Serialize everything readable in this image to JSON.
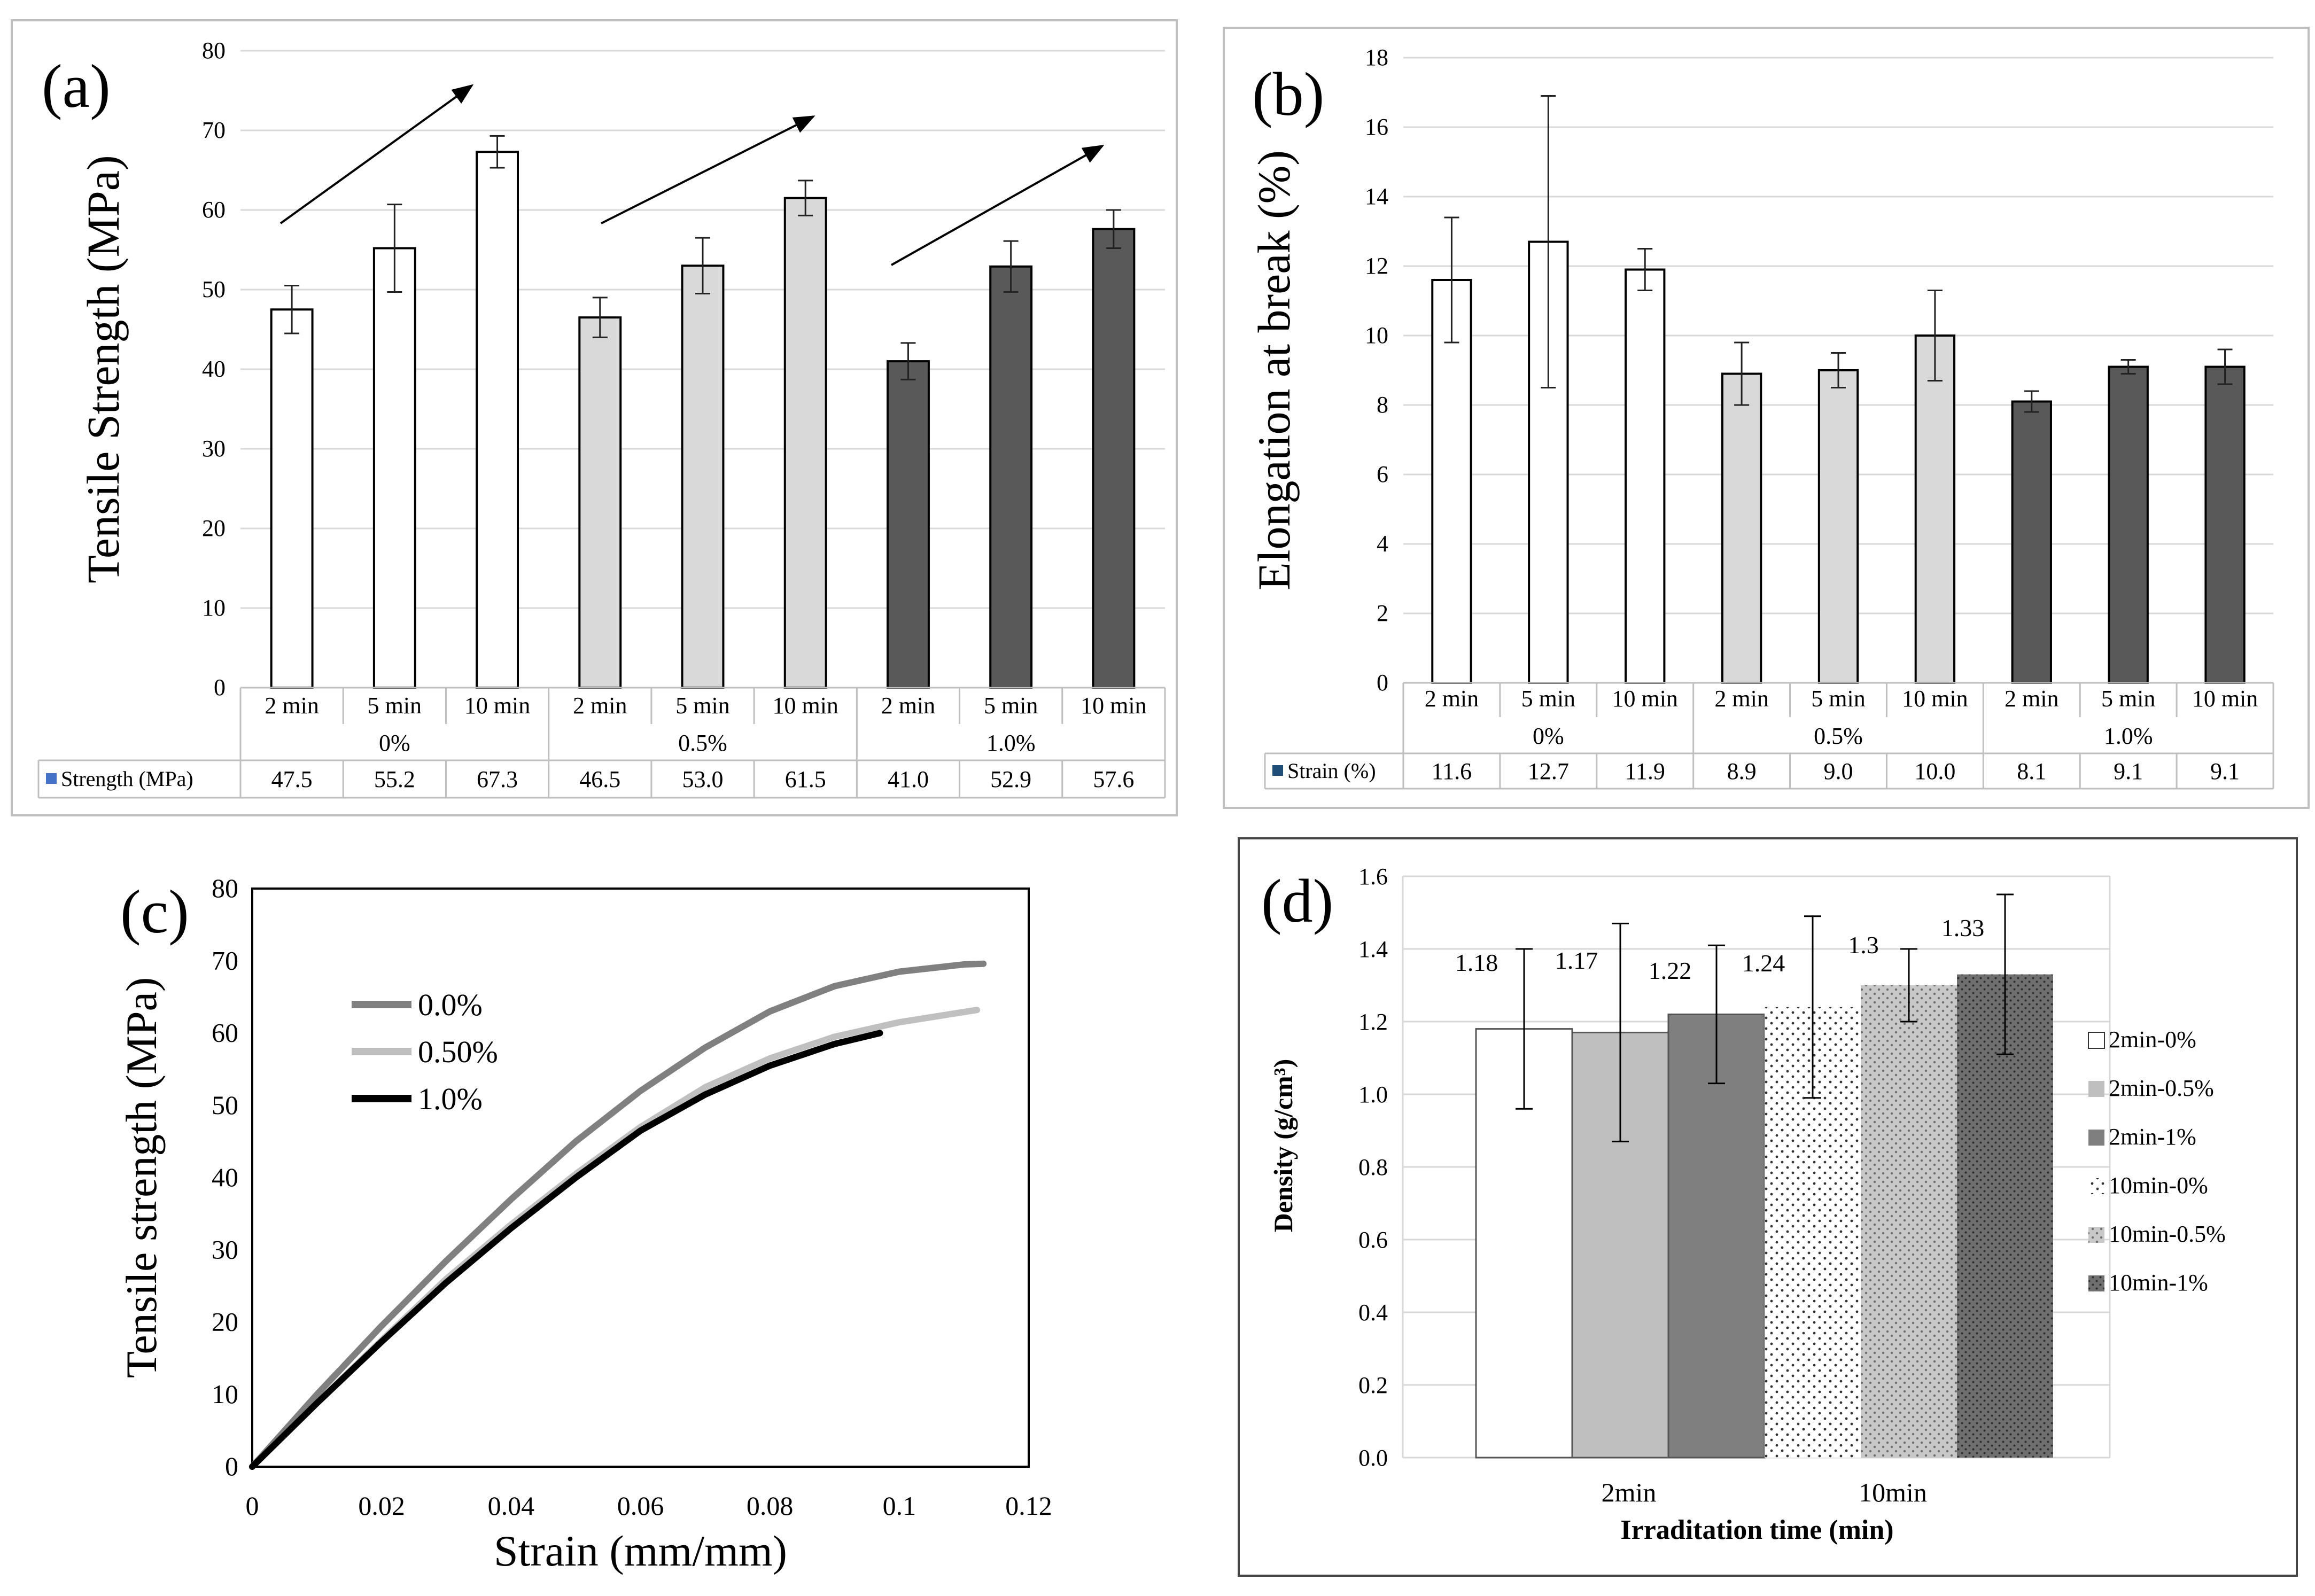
{
  "panels": {
    "a": {
      "tag": "(a)"
    },
    "b": {
      "tag": "(b)"
    },
    "c": {
      "tag": "(c)"
    },
    "d": {
      "tag": "(d)"
    }
  },
  "colors": {
    "white_bar": "#ffffff",
    "light_bar": "#d9d9d9",
    "dark_bar": "#595959",
    "legend_square_a": "#4472c4",
    "legend_square_b": "#1f4e79",
    "grid": "#d9d9d9",
    "curve_0": "#808080",
    "curve_05": "#c0c0c0",
    "curve_1": "#000000",
    "density_2min_0": "#ffffff",
    "density_2min_05": "#bfbfbf",
    "density_2min_1": "#7f7f7f"
  },
  "chart_data": [
    {
      "id": "a",
      "type": "bar",
      "ylabel": "Tensile Strength (MPa)",
      "ylim": [
        0,
        80
      ],
      "yticks": [
        0,
        10,
        20,
        30,
        40,
        50,
        60,
        70,
        80
      ],
      "grid": true,
      "categories": [
        "2 min",
        "5 min",
        "10 min",
        "2 min",
        "5 min",
        "10 min",
        "2 min",
        "5 min",
        "10 min"
      ],
      "groups": [
        {
          "label": "0%",
          "fill": "white"
        },
        {
          "label": "0.5%",
          "fill": "light"
        },
        {
          "label": "1.0%",
          "fill": "dark"
        }
      ],
      "series": [
        {
          "name": "Strength (MPa)",
          "values": [
            47.5,
            55.2,
            67.3,
            46.5,
            53.0,
            61.5,
            41.0,
            52.9,
            57.6
          ]
        }
      ],
      "table_values": [
        "47.5",
        "55.2",
        "67.3",
        "46.5",
        "53.0",
        "61.5",
        "41.0",
        "52.9",
        "57.6"
      ],
      "errors": [
        3,
        5.5,
        2,
        2.5,
        3.5,
        2.2,
        2.3,
        3.2,
        2.4
      ],
      "annotations": [
        "trend-arrow",
        "trend-arrow",
        "trend-arrow"
      ]
    },
    {
      "id": "b",
      "type": "bar",
      "ylabel": "Elongation at break (%)",
      "ylim": [
        0,
        18
      ],
      "yticks": [
        0,
        2,
        4,
        6,
        8,
        10,
        12,
        14,
        16,
        18
      ],
      "grid": true,
      "categories": [
        "2 min",
        "5 min",
        "10 min",
        "2 min",
        "5 min",
        "10 min",
        "2 min",
        "5 min",
        "10 min"
      ],
      "groups": [
        {
          "label": "0%",
          "fill": "white"
        },
        {
          "label": "0.5%",
          "fill": "light"
        },
        {
          "label": "1.0%",
          "fill": "dark"
        }
      ],
      "series": [
        {
          "name": "Strain (%)",
          "values": [
            11.6,
            12.7,
            11.9,
            8.9,
            9.0,
            10.0,
            8.1,
            9.1,
            9.1
          ]
        }
      ],
      "table_values": [
        "11.6",
        "12.7",
        "11.9",
        "8.9",
        "9.0",
        "10.0",
        "8.1",
        "9.1",
        "9.1"
      ],
      "errors": [
        1.8,
        4.2,
        0.6,
        0.9,
        0.5,
        1.3,
        0.3,
        0.2,
        0.5
      ]
    },
    {
      "id": "c",
      "type": "line",
      "xlabel": "Strain (mm/mm)",
      "ylabel": "Tensile  strength (MPa)",
      "xlim": [
        0,
        0.12
      ],
      "ylim": [
        0,
        80
      ],
      "xticks": [
        0,
        0.02,
        0.04,
        0.06,
        0.08,
        0.1,
        0.12
      ],
      "xtick_labels": [
        "0",
        "0.02",
        "0.04",
        "0.06",
        "0.08",
        "0.1",
        "0.12"
      ],
      "yticks": [
        0,
        10,
        20,
        30,
        40,
        50,
        60,
        70,
        80
      ],
      "legend": "upper-left",
      "grid": false,
      "series": [
        {
          "name": "0.0%",
          "x": [
            0,
            0.01,
            0.02,
            0.03,
            0.04,
            0.05,
            0.06,
            0.07,
            0.08,
            0.09,
            0.1,
            0.11,
            0.113
          ],
          "y": [
            0,
            10,
            19.5,
            28.5,
            37,
            45,
            52,
            58,
            63,
            66.5,
            68.5,
            69.5,
            69.6
          ]
        },
        {
          "name": "0.50%",
          "x": [
            0,
            0.01,
            0.02,
            0.03,
            0.04,
            0.05,
            0.06,
            0.07,
            0.08,
            0.09,
            0.1,
            0.112
          ],
          "y": [
            0,
            8.8,
            17.5,
            26,
            33.5,
            40.5,
            47,
            52.5,
            56.5,
            59.5,
            61.5,
            63.2
          ]
        },
        {
          "name": "1.0%",
          "x": [
            0,
            0.01,
            0.02,
            0.03,
            0.04,
            0.05,
            0.06,
            0.07,
            0.08,
            0.09,
            0.097
          ],
          "y": [
            0,
            8.8,
            17.3,
            25.5,
            33,
            40,
            46.5,
            51.5,
            55.5,
            58.5,
            60
          ]
        }
      ]
    },
    {
      "id": "d",
      "type": "bar",
      "xlabel": "Irraditation  time (min)",
      "ylabel": "Density (g/cm³)",
      "ylim": [
        0,
        1.6
      ],
      "yticks": [
        0,
        0.2,
        0.4,
        0.6,
        0.8,
        1.0,
        1.2,
        1.4,
        1.6
      ],
      "ytick_labels": [
        "0.0",
        "0.2",
        "0.4",
        "0.6",
        "0.8",
        "1.0",
        "1.2",
        "1.4",
        "1.6"
      ],
      "categories": [
        "2min",
        "10min"
      ],
      "legend": "right",
      "grid": true,
      "series": [
        {
          "name": "2min-0%",
          "value": 1.18,
          "label": "1.18",
          "error": 0.22,
          "fill": "white"
        },
        {
          "name": "2min-0.5%",
          "value": 1.17,
          "label": "1.17",
          "error": 0.3,
          "fill": "light"
        },
        {
          "name": "2min-1%",
          "value": 1.22,
          "label": "1.22",
          "error": 0.19,
          "fill": "dark"
        },
        {
          "name": "10min-0%",
          "value": 1.24,
          "label": "1.24",
          "error": 0.25,
          "fill": "white-dots"
        },
        {
          "name": "10min-0.5%",
          "value": 1.3,
          "label": "1.3",
          "error": 0.1,
          "fill": "light-dots"
        },
        {
          "name": "10min-1%",
          "value": 1.33,
          "label": "1.33",
          "error": 0.22,
          "fill": "dark-dots"
        }
      ]
    }
  ]
}
